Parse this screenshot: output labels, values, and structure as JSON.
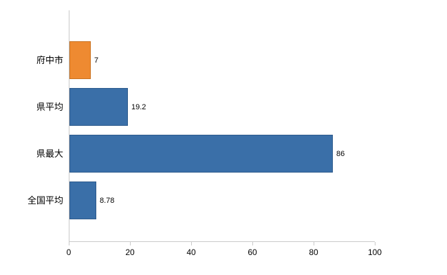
{
  "chart_data": {
    "type": "bar",
    "orientation": "horizontal",
    "title": "",
    "xlabel": "",
    "ylabel": "",
    "categories": [
      "府中市",
      "県平均",
      "県最大",
      "全国平均"
    ],
    "values": [
      7,
      19.2,
      86,
      8.78
    ],
    "value_labels": [
      "7",
      "19.2",
      "86",
      "8.78"
    ],
    "bar_colors": [
      "#ee8a31",
      "#3a6fa8",
      "#3a6fa8",
      "#3a6fa8"
    ],
    "bar_border_colors": [
      "#c9711f",
      "#2d5a8c",
      "#2d5a8c",
      "#2d5a8c"
    ],
    "xlim": [
      0,
      100
    ],
    "xticks": [
      0,
      20,
      40,
      60,
      80,
      100
    ],
    "grid": false,
    "legend": "none"
  },
  "colors": {
    "axis": "#c9c9c9",
    "text": "#000000",
    "background": "#ffffff"
  }
}
